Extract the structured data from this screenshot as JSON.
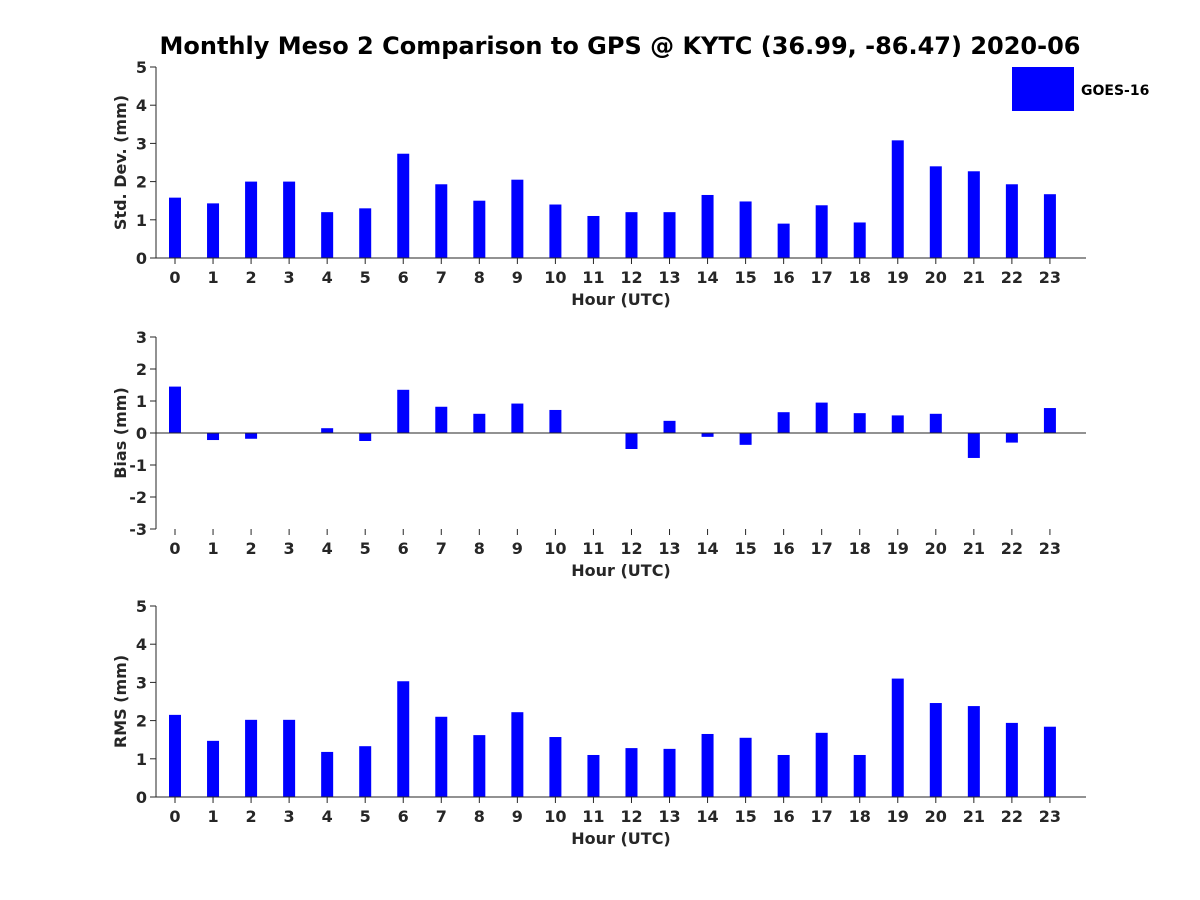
{
  "figure": {
    "title": "Monthly Meso 2 Comparison to GPS @ KYTC (36.99, -86.47) 2020-06",
    "legend": {
      "entries": [
        "GOES-16"
      ],
      "placement": "top-right"
    },
    "bar_color": "#0000ff"
  },
  "chart_data": [
    {
      "type": "bar",
      "title": "",
      "xlabel": "Hour (UTC)",
      "ylabel": "Std. Dev. (mm)",
      "ylim": [
        0,
        5
      ],
      "yticks": [
        0,
        1,
        2,
        3,
        4,
        5
      ],
      "categories": [
        "0",
        "1",
        "2",
        "3",
        "4",
        "5",
        "6",
        "7",
        "8",
        "9",
        "10",
        "11",
        "12",
        "13",
        "14",
        "15",
        "16",
        "17",
        "18",
        "19",
        "20",
        "21",
        "22",
        "23"
      ],
      "series": [
        {
          "name": "GOES-16",
          "values": [
            1.58,
            1.43,
            2.0,
            2.0,
            1.2,
            1.3,
            2.73,
            1.93,
            1.5,
            2.05,
            1.4,
            1.1,
            1.2,
            1.2,
            1.65,
            1.48,
            0.9,
            1.38,
            0.93,
            3.08,
            2.4,
            2.27,
            1.93,
            1.67
          ]
        }
      ]
    },
    {
      "type": "bar",
      "title": "",
      "xlabel": "Hour (UTC)",
      "ylabel": "Bias (mm)",
      "ylim": [
        -3,
        3
      ],
      "yticks": [
        -3,
        -2,
        -1,
        0,
        1,
        2,
        3
      ],
      "categories": [
        "0",
        "1",
        "2",
        "3",
        "4",
        "5",
        "6",
        "7",
        "8",
        "9",
        "10",
        "11",
        "12",
        "13",
        "14",
        "15",
        "16",
        "17",
        "18",
        "19",
        "20",
        "21",
        "22",
        "23"
      ],
      "series": [
        {
          "name": "GOES-16",
          "values": [
            1.45,
            -0.22,
            -0.18,
            0.0,
            0.15,
            -0.25,
            1.35,
            0.82,
            0.6,
            0.92,
            0.72,
            0.0,
            -0.5,
            0.38,
            -0.12,
            -0.37,
            0.65,
            0.95,
            0.62,
            0.55,
            0.6,
            -0.78,
            -0.3,
            0.78
          ]
        }
      ]
    },
    {
      "type": "bar",
      "title": "",
      "xlabel": "Hour (UTC)",
      "ylabel": "RMS (mm)",
      "ylim": [
        0,
        5
      ],
      "yticks": [
        0,
        1,
        2,
        3,
        4,
        5
      ],
      "categories": [
        "0",
        "1",
        "2",
        "3",
        "4",
        "5",
        "6",
        "7",
        "8",
        "9",
        "10",
        "11",
        "12",
        "13",
        "14",
        "15",
        "16",
        "17",
        "18",
        "19",
        "20",
        "21",
        "22",
        "23"
      ],
      "series": [
        {
          "name": "GOES-16",
          "values": [
            2.15,
            1.47,
            2.02,
            2.02,
            1.18,
            1.33,
            3.03,
            2.1,
            1.62,
            2.22,
            1.57,
            1.1,
            1.28,
            1.26,
            1.65,
            1.55,
            1.1,
            1.68,
            1.1,
            3.1,
            2.46,
            2.38,
            1.94,
            1.84
          ]
        }
      ]
    }
  ]
}
